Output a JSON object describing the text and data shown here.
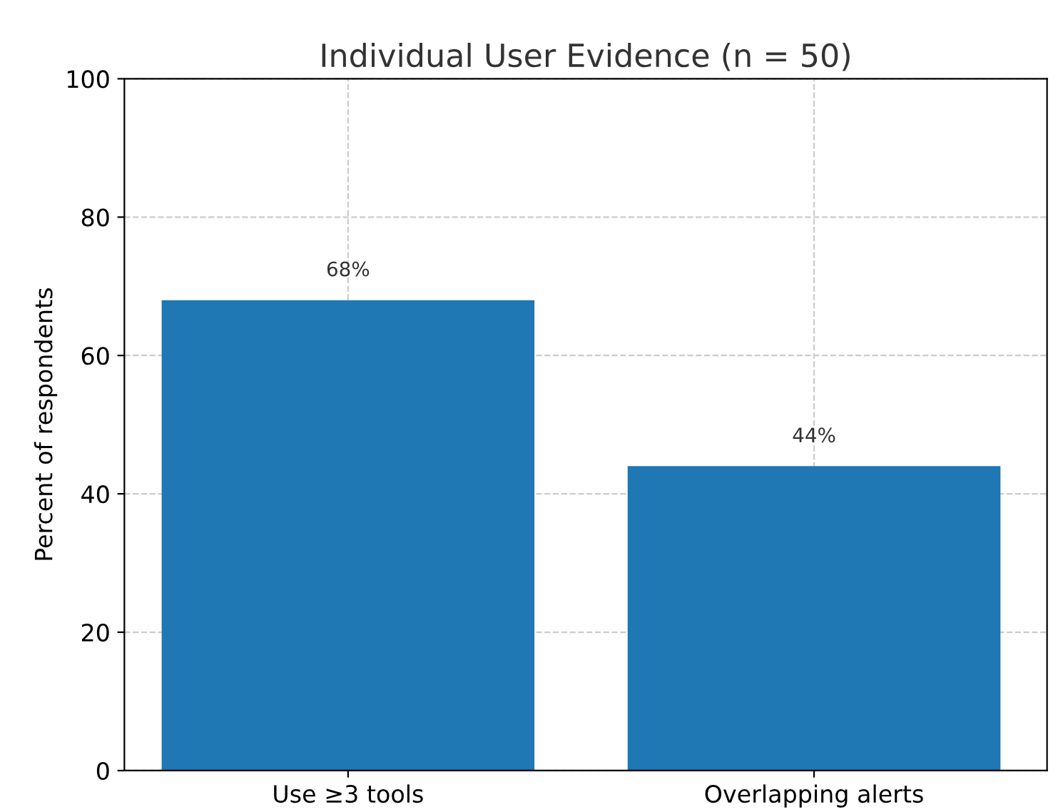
{
  "chart_data": {
    "type": "bar",
    "title": "Individual User Evidence (n = 50)",
    "ylabel": "Percent of respondents",
    "categories": [
      "Use ≥3 tools",
      "Overlapping alerts"
    ],
    "values": [
      68,
      44
    ],
    "color": "#1f77b4",
    "value_labels": [
      "68%",
      "44%"
    ],
    "ylim": [
      0,
      100
    ],
    "yticks": [
      0,
      20,
      40,
      60,
      80,
      100
    ],
    "grid": true
  }
}
